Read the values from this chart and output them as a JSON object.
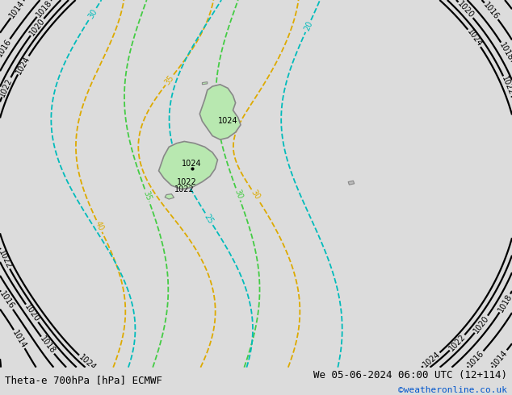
{
  "title_left": "Theta-e 700hPa [hPa] ECMWF",
  "title_right": "We 05-06-2024 06:00 UTC (12+114)",
  "credit": "©weatheronline.co.uk",
  "bg_color": "#dcdcdc",
  "land_color": "#b8e8b0",
  "coast_color": "#888888",
  "pressure_color": "#000000",
  "theta_warm_color": "#ddaa00",
  "theta_green_color": "#44cc44",
  "theta_cold_color": "#00bbbb",
  "figsize": [
    6.34,
    4.9
  ],
  "dpi": 100,
  "label_fs": 7
}
